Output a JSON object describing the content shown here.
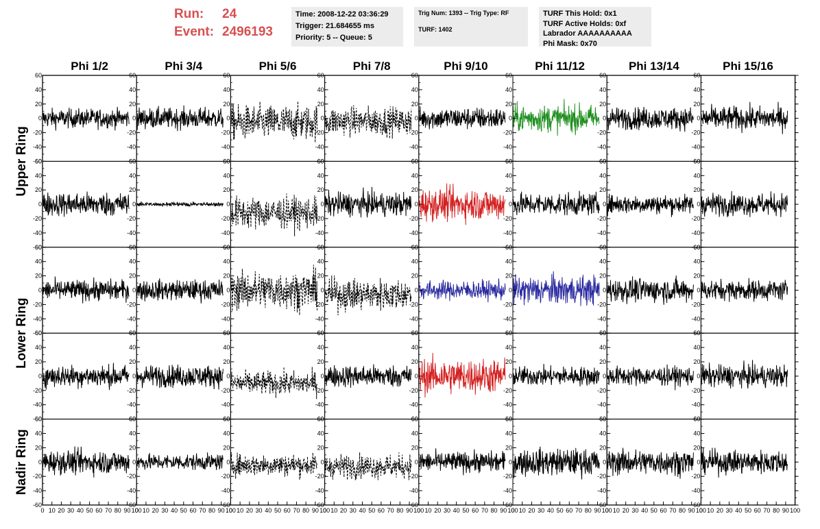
{
  "run": {
    "run_label": "Run:",
    "run_value": "24",
    "event_label": "Event:",
    "event_value": "2496193",
    "color": "#d65050"
  },
  "info": {
    "time": "Time: 2008-12-22 03:36:29",
    "trigger": "Trigger: 21.684655 ms",
    "priority": "Priority: 5 -- Queue: 5",
    "trig_num": "Trig Num: 1393 -- Trig Type: RF",
    "turf": "TURF: 1402",
    "turf_this_hold": "TURF This Hold: 0x1",
    "turf_active_holds": "TURF Active Holds: 0xf",
    "labrador": "Labrador AAAAAAAAAA",
    "phi_mask": "Phi Mask: 0x70"
  },
  "chart_data": {
    "type": "line",
    "columns": [
      "Phi 1/2",
      "Phi 3/4",
      "Phi 5/6",
      "Phi 7/8",
      "Phi 9/10",
      "Phi 11/12",
      "Phi 13/14",
      "Phi 15/16"
    ],
    "row_labels": [
      {
        "label": "Upper Ring",
        "rows": [
          0,
          1
        ]
      },
      {
        "label": "Lower Ring",
        "rows": [
          2,
          3
        ]
      },
      {
        "label": "Nadir Ring",
        "rows": [
          4
        ]
      }
    ],
    "xlim": [
      0,
      100
    ],
    "ylim": [
      -60,
      60
    ],
    "x_tick_labels": [
      "0",
      "10",
      "20",
      "30",
      "40",
      "50",
      "60",
      "70",
      "80",
      "90",
      "100"
    ],
    "y_tick_labels": [
      "-60",
      "-40",
      "-20",
      "0",
      "20",
      "40",
      "60"
    ],
    "panels": [
      [
        "normal",
        "normal",
        "dashed",
        "dashed",
        "normal",
        "green",
        "normal",
        "normal"
      ],
      [
        "normal",
        "flat",
        "dashed",
        "normal",
        "red",
        "normal",
        "normal",
        "normal"
      ],
      [
        "normal",
        "normal",
        "dashed",
        "dashed",
        "blue",
        "blue",
        "normal",
        "normal"
      ],
      [
        "normal",
        "normal",
        "dashed",
        "normal",
        "red",
        "normal",
        "normal",
        "normal"
      ],
      [
        "normal",
        "normal",
        "dashed",
        "dashed",
        "normal",
        "normal",
        "normal",
        "normal"
      ]
    ],
    "amplitudes": [
      [
        12,
        13,
        22,
        18,
        14,
        17,
        14,
        15
      ],
      [
        15,
        1.5,
        20,
        15,
        20,
        14,
        12,
        14
      ],
      [
        13,
        13,
        24,
        20,
        12,
        18,
        15,
        13
      ],
      [
        14,
        14,
        15,
        14,
        22,
        12,
        12,
        14
      ],
      [
        15,
        10,
        14,
        15,
        13,
        17,
        16,
        15
      ]
    ],
    "offsets": [
      [
        0,
        0,
        -6,
        -4,
        0,
        0,
        0,
        0
      ],
      [
        0,
        0,
        -12,
        0,
        0,
        0,
        0,
        0
      ],
      [
        0,
        0,
        0,
        -6,
        0,
        0,
        0,
        0
      ],
      [
        0,
        0,
        -10,
        0,
        0,
        0,
        0,
        0
      ],
      [
        0,
        0,
        -4,
        -6,
        0,
        0,
        0,
        0
      ]
    ],
    "colors": {
      "normal": "#000000",
      "dashed": "#000000",
      "flat": "#000000",
      "green": "#1f8f1f",
      "red": "#d42222",
      "blue": "#2a2aa0"
    }
  }
}
